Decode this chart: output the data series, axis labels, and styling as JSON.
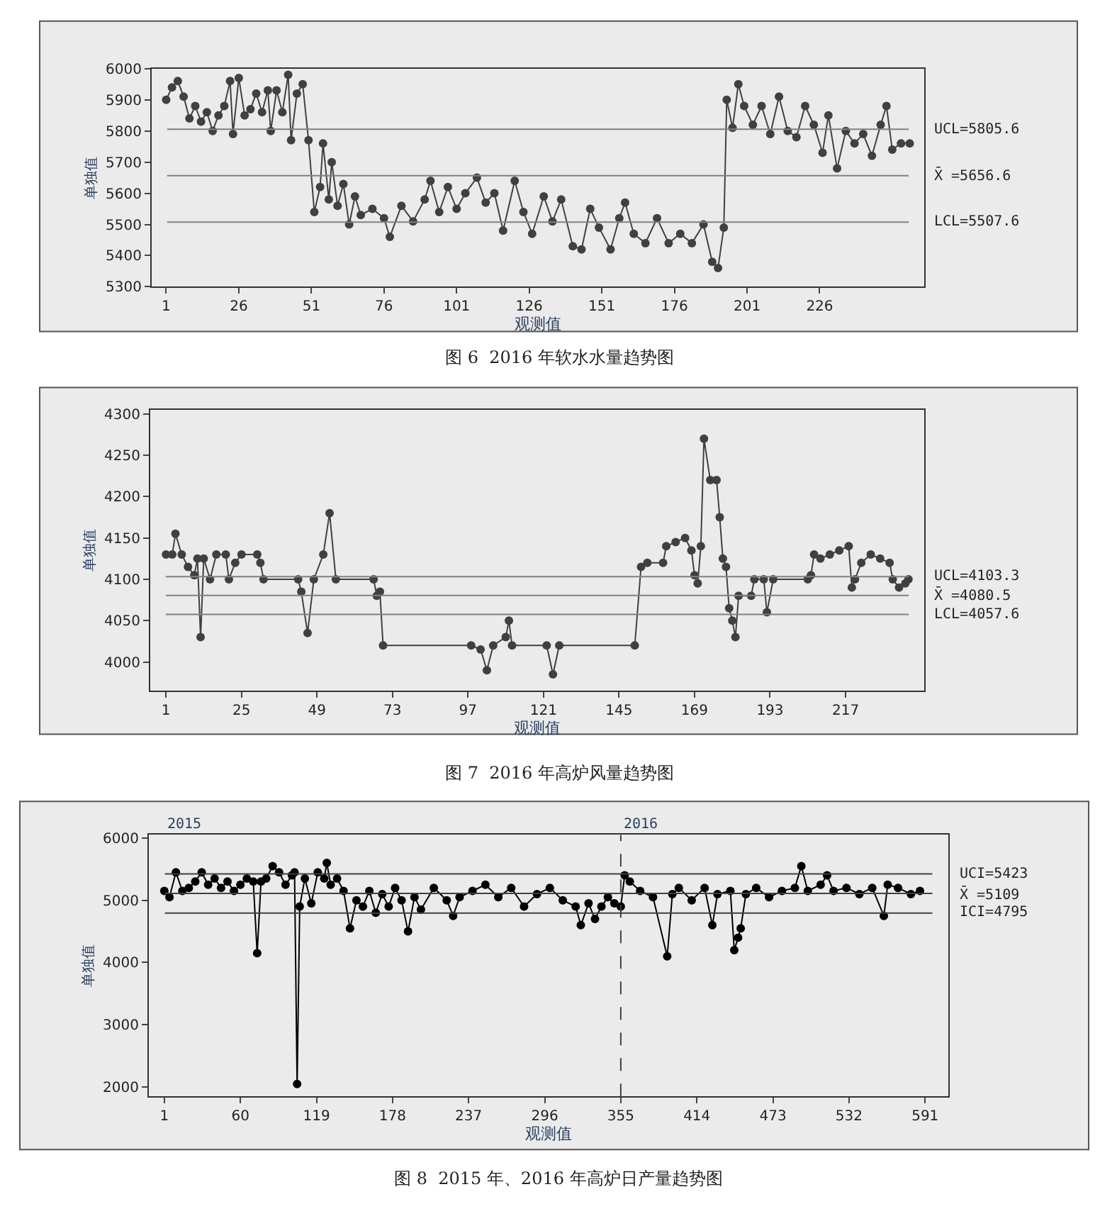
{
  "chart_data": [
    {
      "type": "line",
      "title": "图 6  2016 年软水水量趋势图",
      "xlabel": "观测值",
      "ylabel": "单独值",
      "marker": "circle",
      "grid": false,
      "xlim": [
        -4,
        262
      ],
      "ylim": [
        5300,
        6000
      ],
      "xticks": [
        1,
        26,
        51,
        76,
        101,
        126,
        151,
        176,
        201,
        226
      ],
      "yticks": [
        5300,
        5400,
        5500,
        5600,
        5700,
        5800,
        5900,
        6000
      ],
      "ref_lines": [
        {
          "axis": "y",
          "value": 5805.6,
          "label": "UCL=5805.6",
          "color": "#808080"
        },
        {
          "axis": "y",
          "value": 5656.6,
          "label": "X̄ =5656.6",
          "color": "#808080"
        },
        {
          "axis": "y",
          "value": 5507.6,
          "label": "LCL=5507.6",
          "color": "#808080"
        }
      ],
      "x": [
        1,
        3,
        5,
        7,
        9,
        11,
        13,
        15,
        17,
        19,
        21,
        23,
        24,
        26,
        28,
        30,
        32,
        34,
        36,
        37,
        39,
        41,
        43,
        44,
        46,
        48,
        50,
        52,
        54,
        55,
        57,
        58,
        60,
        62,
        64,
        66,
        68,
        72,
        76,
        78,
        82,
        86,
        90,
        92,
        95,
        98,
        101,
        104,
        108,
        111,
        114,
        117,
        121,
        124,
        127,
        131,
        134,
        137,
        141,
        144,
        147,
        150,
        154,
        157,
        159,
        162,
        166,
        170,
        174,
        178,
        182,
        186,
        189,
        191,
        193,
        194,
        196,
        198,
        200,
        203,
        206,
        209,
        212,
        215,
        218,
        221,
        224,
        227,
        229,
        232,
        235,
        238,
        241,
        244,
        247,
        249,
        251,
        254,
        257
      ],
      "series": [
        {
          "color": "#404040",
          "values": [
            5900,
            5940,
            5960,
            5910,
            5840,
            5880,
            5830,
            5860,
            5800,
            5850,
            5880,
            5960,
            5790,
            5970,
            5850,
            5870,
            5920,
            5860,
            5930,
            5800,
            5930,
            5860,
            5980,
            5770,
            5920,
            5950,
            5770,
            5540,
            5620,
            5760,
            5580,
            5700,
            5560,
            5630,
            5500,
            5590,
            5530,
            5550,
            5520,
            5460,
            5560,
            5510,
            5580,
            5640,
            5540,
            5620,
            5550,
            5600,
            5650,
            5570,
            5600,
            5480,
            5640,
            5540,
            5470,
            5590,
            5510,
            5580,
            5430,
            5420,
            5550,
            5490,
            5420,
            5520,
            5570,
            5470,
            5440,
            5520,
            5440,
            5470,
            5440,
            5500,
            5380,
            5360,
            5490,
            5900,
            5810,
            5950,
            5880,
            5820,
            5880,
            5790,
            5910,
            5800,
            5780,
            5880,
            5820,
            5730,
            5850,
            5680,
            5800,
            5760,
            5790,
            5720,
            5820,
            5880,
            5740,
            5760,
            5760
          ]
        }
      ]
    },
    {
      "type": "line",
      "title": "图 7  2016 年高炉风量趋势图",
      "xlabel": "观测值",
      "ylabel": "单独值",
      "marker": "circle",
      "grid": false,
      "xlim": [
        -4,
        242
      ],
      "ylim": [
        3965,
        4305
      ],
      "xticks": [
        1,
        25,
        49,
        73,
        97,
        121,
        145,
        169,
        193,
        217
      ],
      "yticks": [
        4000,
        4050,
        4100,
        4150,
        4200,
        4250,
        4300
      ],
      "ref_lines": [
        {
          "axis": "y",
          "value": 4103.3,
          "label": "UCL=4103.3",
          "color": "#808080"
        },
        {
          "axis": "y",
          "value": 4080.5,
          "label": "X̄ =4080.5",
          "color": "#808080"
        },
        {
          "axis": "y",
          "value": 4057.6,
          "label": "LCL=4057.6",
          "color": "#808080"
        }
      ],
      "x": [
        1,
        3,
        4,
        6,
        8,
        10,
        11,
        12,
        13,
        15,
        17,
        20,
        21,
        23,
        25,
        30,
        31,
        32,
        43,
        44,
        46,
        48,
        51,
        53,
        55,
        67,
        68,
        69,
        70,
        98,
        101,
        103,
        105,
        109,
        110,
        111,
        122,
        124,
        126,
        150,
        152,
        154,
        159,
        160,
        163,
        166,
        168,
        169,
        170,
        171,
        172,
        174,
        176,
        177,
        178,
        179,
        180,
        181,
        182,
        183,
        187,
        188,
        191,
        192,
        194,
        205,
        206,
        207,
        209,
        212,
        215,
        218,
        219,
        220,
        222,
        225,
        228,
        231,
        232,
        234,
        236,
        237
      ],
      "series": [
        {
          "color": "#404040",
          "values": [
            4130,
            4130,
            4155,
            4130,
            4115,
            4105,
            4125,
            4030,
            4125,
            4100,
            4130,
            4130,
            4100,
            4120,
            4130,
            4130,
            4120,
            4100,
            4100,
            4085,
            4035,
            4100,
            4130,
            4180,
            4100,
            4100,
            4080,
            4085,
            4020,
            4020,
            4015,
            3990,
            4020,
            4030,
            4050,
            4020,
            4020,
            3985,
            4020,
            4020,
            4115,
            4120,
            4120,
            4140,
            4145,
            4150,
            4135,
            4105,
            4095,
            4140,
            4270,
            4220,
            4220,
            4175,
            4125,
            4115,
            4065,
            4050,
            4030,
            4080,
            4080,
            4100,
            4100,
            4060,
            4100,
            4100,
            4105,
            4130,
            4125,
            4130,
            4135,
            4140,
            4090,
            4100,
            4120,
            4130,
            4125,
            4120,
            4100,
            4090,
            4095,
            4100
          ]
        }
      ]
    },
    {
      "type": "line",
      "title": "图 8  2015 年、2016 年高炉日产量趋势图",
      "xlabel": "观测值",
      "ylabel": "单独值",
      "marker": "circle",
      "grid": false,
      "xlim": [
        -11,
        609
      ],
      "ylim": [
        1850,
        6050
      ],
      "xticks": [
        1,
        60,
        119,
        178,
        237,
        296,
        355,
        414,
        473,
        532,
        591
      ],
      "yticks": [
        2000,
        3000,
        4000,
        5000,
        6000
      ],
      "annotations": [
        "2015",
        "2016"
      ],
      "ref_lines": [
        {
          "axis": "y",
          "value": 5423,
          "label": "UCI=5423",
          "color": "#404040"
        },
        {
          "axis": "y",
          "value": 5109,
          "label": "X̄ =5109",
          "color": "#404040"
        },
        {
          "axis": "y",
          "value": 4795,
          "label": "ICI=4795",
          "color": "#404040"
        },
        {
          "axis": "x",
          "value": 355,
          "color": "#404040",
          "line_style": "dashed"
        }
      ],
      "x": [
        1,
        5,
        10,
        15,
        20,
        25,
        30,
        35,
        40,
        45,
        50,
        55,
        60,
        65,
        70,
        73,
        76,
        80,
        85,
        90,
        95,
        100,
        102,
        104,
        106,
        110,
        115,
        120,
        125,
        127,
        130,
        135,
        140,
        145,
        150,
        155,
        160,
        165,
        170,
        175,
        180,
        185,
        190,
        195,
        200,
        210,
        220,
        225,
        230,
        240,
        250,
        260,
        270,
        280,
        290,
        300,
        310,
        320,
        324,
        330,
        335,
        340,
        345,
        350,
        355,
        358,
        362,
        370,
        380,
        391,
        395,
        400,
        410,
        420,
        426,
        430,
        440,
        443,
        446,
        448,
        452,
        460,
        470,
        480,
        490,
        495,
        500,
        510,
        515,
        520,
        530,
        540,
        550,
        559,
        562,
        570,
        580,
        587
      ],
      "series": [
        {
          "color": "#000000",
          "values": [
            5150,
            5050,
            5450,
            5150,
            5200,
            5300,
            5450,
            5250,
            5350,
            5200,
            5300,
            5150,
            5250,
            5350,
            5300,
            4150,
            5300,
            5350,
            5550,
            5450,
            5250,
            5400,
            5450,
            2050,
            4900,
            5350,
            4950,
            5450,
            5350,
            5600,
            5250,
            5350,
            5150,
            4550,
            5000,
            4900,
            5150,
            4800,
            5100,
            4900,
            5200,
            5000,
            4500,
            5050,
            4850,
            5200,
            5000,
            4750,
            5050,
            5150,
            5250,
            5050,
            5200,
            4900,
            5100,
            5200,
            5000,
            4900,
            4600,
            4950,
            4700,
            4900,
            5050,
            4950,
            4900,
            5400,
            5300,
            5150,
            5050,
            4100,
            5100,
            5200,
            5000,
            5200,
            4600,
            5100,
            5150,
            4200,
            4400,
            4550,
            5100,
            5200,
            5050,
            5150,
            5200,
            5550,
            5150,
            5250,
            5400,
            5150,
            5200,
            5100,
            5200,
            4750,
            5250,
            5200,
            5100,
            5150
          ]
        }
      ]
    }
  ]
}
